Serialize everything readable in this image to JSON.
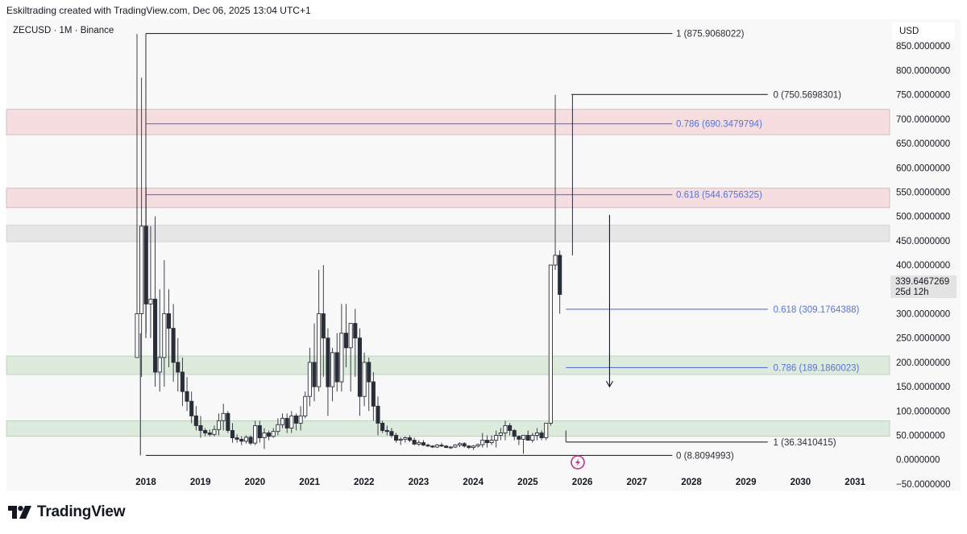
{
  "header": {
    "attribution": "Eskiltrading created with TradingView.com, Dec 06, 2025 13:04 UTC+1"
  },
  "symbol_label": "ZECUSD · 1M · Binance",
  "currency": "USD",
  "brand": {
    "name": "TradingView"
  },
  "last_price": {
    "value": "339.6467269",
    "countdown": "25d 12h"
  },
  "colors": {
    "resistance_zone": "#f6dde0",
    "resistance_border": "#c9b4b8",
    "neutral_zone": "#e6e6e6",
    "support_zone": "#dcebdb",
    "support_border": "#bccabb",
    "fib_blue": "#5a73d6",
    "fib_black": "#2a2e39",
    "candle": "#2a2e39"
  },
  "chart_data": {
    "type": "candlestick",
    "title": "ZECUSD · 1M · Binance",
    "ylim": [
      -65,
      905
    ],
    "y_ticks": [
      "850.0000000",
      "800.0000000",
      "750.0000000",
      "700.0000000",
      "650.0000000",
      "600.0000000",
      "550.0000000",
      "500.0000000",
      "450.0000000",
      "400.0000000",
      "350.0000000",
      "300.0000000",
      "250.0000000",
      "200.0000000",
      "150.0000000",
      "100.0000000",
      "50.0000000",
      "0.0000000",
      "−50.0000000"
    ],
    "x_ticks": [
      "2018",
      "2019",
      "2020",
      "2021",
      "2022",
      "2023",
      "2024",
      "2025",
      "2026",
      "2027",
      "2028",
      "2029",
      "2030",
      "2031"
    ],
    "x_start_year": 2018,
    "zones": [
      {
        "kind": "resistance",
        "from": 668,
        "to": 720
      },
      {
        "kind": "resistance",
        "from": 518,
        "to": 558
      },
      {
        "kind": "neutral",
        "from": 448,
        "to": 482
      },
      {
        "kind": "support",
        "from": 175,
        "to": 213
      },
      {
        "kind": "support",
        "from": 48,
        "to": 80
      }
    ],
    "fib_levels": [
      {
        "label": "1 (875.9068022)",
        "value": 875.9068022,
        "x_from": 2018,
        "x_to": 2027.65,
        "label_x": 2027.72,
        "color": "black"
      },
      {
        "label": "0.786 (690.3479794)",
        "value": 690.3479794,
        "x_from": 2018,
        "x_to": 2027.65,
        "label_x": 2027.72,
        "color": "blue"
      },
      {
        "label": "0.618 (544.6756325)",
        "value": 544.6756325,
        "x_from": 2018,
        "x_to": 2027.65,
        "label_x": 2027.72,
        "color": "blue"
      },
      {
        "label": "0 (8.8094993)",
        "value": 8.8094993,
        "x_from": 2018,
        "x_to": 2027.65,
        "label_x": 2027.72,
        "color": "black"
      },
      {
        "label": "0 (750.5698301)",
        "value": 750.5698301,
        "x_from": 2025.8,
        "x_to": 2029.4,
        "label_x": 2029.5,
        "color": "black"
      },
      {
        "label": "0.618 (309.1764388)",
        "value": 309.1764388,
        "x_from": 2025.7,
        "x_to": 2029.4,
        "label_x": 2029.5,
        "color": "blue"
      },
      {
        "label": "0.786 (189.1860023)",
        "value": 189.1860023,
        "x_from": 2025.7,
        "x_to": 2029.4,
        "label_x": 2029.5,
        "color": "blue"
      },
      {
        "label": "1 (36.3410415)",
        "value": 36.3410415,
        "x_from": 2025.7,
        "x_to": 2029.4,
        "label_x": 2029.5,
        "color": "black"
      }
    ],
    "projection_arrow": {
      "x": 2026.5,
      "from": 503,
      "to": 150
    },
    "series": [
      {
        "name": "ZECUSD",
        "candles": [
          [
            210,
            875,
            210,
            300
          ],
          [
            300,
            785,
            170,
            480
          ],
          [
            480,
            560,
            260,
            320
          ],
          [
            320,
            480,
            250,
            330
          ],
          [
            330,
            500,
            150,
            180
          ],
          [
            180,
            350,
            140,
            210
          ],
          [
            210,
            410,
            150,
            300
          ],
          [
            300,
            350,
            190,
            270
          ],
          [
            270,
            320,
            160,
            200
          ],
          [
            200,
            250,
            140,
            180
          ],
          [
            180,
            210,
            110,
            140
          ],
          [
            140,
            170,
            100,
            120
          ],
          [
            120,
            140,
            75,
            90
          ],
          [
            90,
            110,
            60,
            70
          ],
          [
            70,
            90,
            45,
            60
          ],
          [
            60,
            65,
            48,
            55
          ],
          [
            55,
            62,
            48,
            52
          ],
          [
            52,
            70,
            48,
            62
          ],
          [
            62,
            95,
            50,
            80
          ],
          [
            80,
            115,
            60,
            95
          ],
          [
            95,
            100,
            55,
            60
          ],
          [
            60,
            75,
            35,
            45
          ],
          [
            45,
            52,
            35,
            42
          ],
          [
            42,
            48,
            30,
            38
          ],
          [
            38,
            50,
            33,
            46
          ],
          [
            46,
            50,
            30,
            34
          ],
          [
            34,
            80,
            30,
            70
          ],
          [
            70,
            80,
            35,
            45
          ],
          [
            45,
            65,
            22,
            55
          ],
          [
            55,
            60,
            40,
            48
          ],
          [
            48,
            65,
            45,
            58
          ],
          [
            58,
            85,
            50,
            72
          ],
          [
            72,
            95,
            65,
            85
          ],
          [
            85,
            95,
            55,
            65
          ],
          [
            65,
            100,
            55,
            90
          ],
          [
            90,
            95,
            60,
            75
          ],
          [
            75,
            110,
            60,
            90
          ],
          [
            90,
            140,
            85,
            130
          ],
          [
            130,
            230,
            110,
            200
          ],
          [
            200,
            280,
            120,
            150
          ],
          [
            150,
            390,
            140,
            300
          ],
          [
            300,
            400,
            170,
            250
          ],
          [
            250,
            270,
            90,
            150
          ],
          [
            150,
            230,
            120,
            220
          ],
          [
            220,
            260,
            140,
            160
          ],
          [
            160,
            320,
            140,
            260
          ],
          [
            260,
            320,
            190,
            230
          ],
          [
            230,
            280,
            140,
            280
          ],
          [
            280,
            310,
            170,
            250
          ],
          [
            250,
            270,
            90,
            130
          ],
          [
            130,
            220,
            110,
            200
          ],
          [
            200,
            210,
            100,
            160
          ],
          [
            160,
            180,
            80,
            110
          ],
          [
            110,
            130,
            50,
            75
          ],
          [
            75,
            80,
            55,
            60
          ],
          [
            60,
            70,
            50,
            58
          ],
          [
            58,
            65,
            45,
            50
          ],
          [
            50,
            55,
            35,
            40
          ],
          [
            40,
            46,
            30,
            42
          ],
          [
            42,
            48,
            35,
            45
          ],
          [
            45,
            50,
            36,
            40
          ],
          [
            40,
            45,
            30,
            32
          ],
          [
            32,
            40,
            28,
            35
          ],
          [
            35,
            40,
            28,
            30
          ],
          [
            30,
            33,
            26,
            28
          ],
          [
            28,
            30,
            24,
            26
          ],
          [
            26,
            32,
            24,
            30
          ],
          [
            30,
            35,
            26,
            28
          ],
          [
            28,
            30,
            24,
            25
          ],
          [
            25,
            28,
            22,
            26
          ],
          [
            26,
            32,
            24,
            30
          ],
          [
            30,
            36,
            26,
            33
          ],
          [
            33,
            36,
            25,
            28
          ],
          [
            28,
            30,
            22,
            25
          ],
          [
            25,
            30,
            20,
            28
          ],
          [
            28,
            33,
            25,
            31
          ],
          [
            31,
            55,
            25,
            40
          ],
          [
            40,
            50,
            25,
            35
          ],
          [
            35,
            50,
            30,
            40
          ],
          [
            40,
            60,
            25,
            50
          ],
          [
            50,
            65,
            40,
            55
          ],
          [
            55,
            80,
            40,
            70
          ],
          [
            70,
            75,
            50,
            60
          ],
          [
            60,
            63,
            40,
            48
          ],
          [
            48,
            50,
            30,
            42
          ],
          [
            42,
            50,
            12,
            50
          ],
          [
            50,
            60,
            40,
            40
          ],
          [
            40,
            55,
            35,
            50
          ],
          [
            50,
            65,
            40,
            55
          ],
          [
            55,
            60,
            40,
            45
          ],
          [
            45,
            75,
            40,
            75
          ],
          [
            75,
            400,
            70,
            400
          ],
          [
            400,
            750,
            390,
            420
          ],
          [
            420,
            430,
            300,
            339.6
          ]
        ]
      }
    ]
  }
}
